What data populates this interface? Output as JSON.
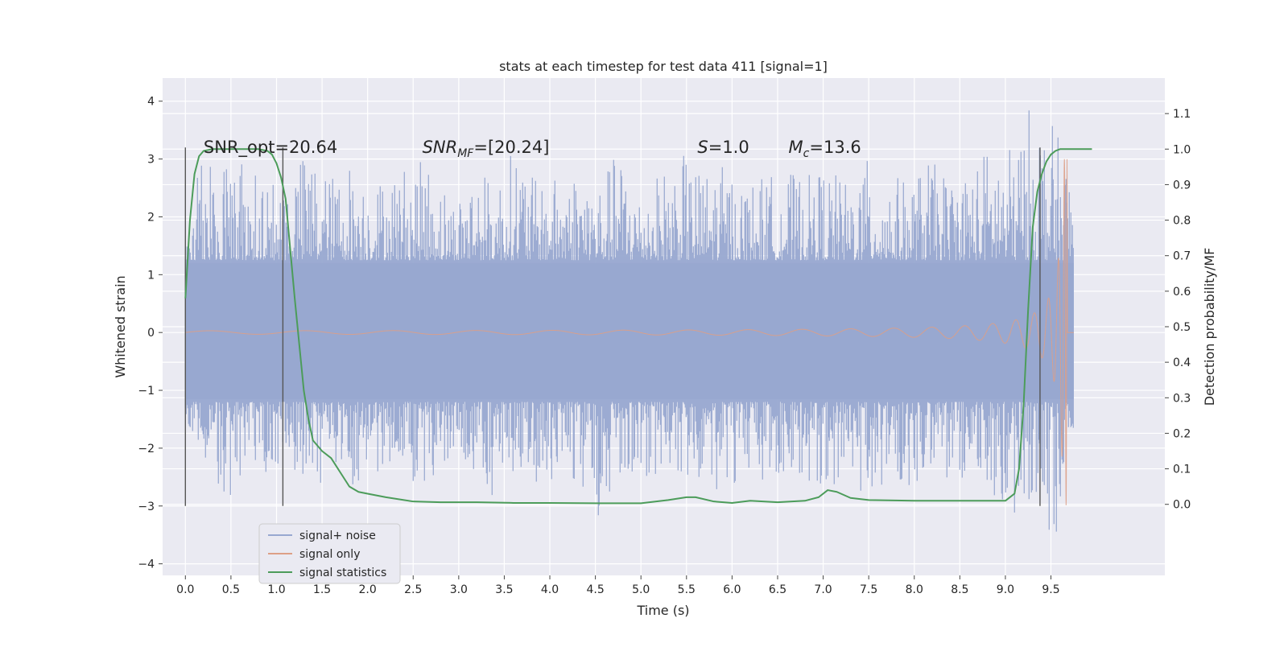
{
  "chart_data": {
    "type": "line",
    "title": "stats at each timestep for test data 411 [signal=1]",
    "xlabel": "Time (s)",
    "ylabel": "Whitened strain",
    "ylabel_right": "Detection probability/MF",
    "xlim": [
      -0.25,
      10.75
    ],
    "ylim": [
      -4.2,
      4.4
    ],
    "ylim_right": [
      -0.2,
      1.2
    ],
    "x_ticks": [
      0.0,
      0.5,
      1.0,
      1.5,
      2.0,
      2.5,
      3.0,
      3.5,
      4.0,
      4.5,
      5.0,
      5.5,
      6.0,
      6.5,
      7.0,
      7.5,
      8.0,
      8.5,
      9.0,
      9.5
    ],
    "x_tick_labels": [
      "0.0",
      "0.5",
      "1.0",
      "1.5",
      "2.0",
      "2.5",
      "3.0",
      "3.5",
      "4.0",
      "4.5",
      "5.0",
      "5.5",
      "6.0",
      "6.5",
      "7.0",
      "7.5",
      "8.0",
      "8.5",
      "9.0",
      "9.5"
    ],
    "y_ticks": [
      4,
      3,
      2,
      1,
      0,
      -1,
      -2,
      -3,
      -4
    ],
    "y_tick_labels": [
      "4",
      "3",
      "2",
      "1",
      "0",
      "−1",
      "−2",
      "−3",
      "−4"
    ],
    "y_right_ticks": [
      1.1,
      1.0,
      0.9,
      0.8,
      0.7,
      0.6,
      0.5,
      0.4,
      0.3,
      0.2,
      0.1,
      0.0
    ],
    "y_right_tick_labels": [
      "1.1",
      "1.0",
      "0.9",
      "0.8",
      "0.7",
      "0.6",
      "0.5",
      "0.4",
      "0.3",
      "0.2",
      "0.1",
      "0.0"
    ],
    "grid": true,
    "legend_position": "lower-left",
    "series": [
      {
        "name": "signal+ noise",
        "axis": "left",
        "color": "#98a8d0",
        "t_range": [
          0.0,
          9.75
        ],
        "envelope_max": [
          2.0,
          3.3,
          2.9,
          3.2,
          2.6,
          2.8,
          3.2,
          2.7,
          3.0,
          2.6,
          2.8,
          3.0,
          2.9,
          2.3,
          2.9,
          2.6,
          3.3,
          2.6,
          2.7,
          2.9,
          2.6,
          3.2,
          2.4,
          2.8,
          3.1,
          2.8,
          2.9,
          2.6,
          2.7,
          2.8,
          2.7,
          2.9,
          2.6,
          3.0,
          2.8,
          2.6,
          3.0,
          2.7,
          2.9,
          3.3,
          3.2,
          4.05,
          3.6,
          2.8
        ],
        "envelope_min": [
          -1.5,
          -2.2,
          -2.9,
          -2.4,
          -2.5,
          -2.3,
          -2.8,
          -2.5,
          -2.9,
          -2.6,
          -2.3,
          -2.7,
          -2.6,
          -2.2,
          -2.8,
          -3.0,
          -2.4,
          -2.6,
          -2.8,
          -2.7,
          -3.2,
          -2.5,
          -2.6,
          -2.4,
          -2.9,
          -2.6,
          -2.8,
          -2.5,
          -2.6,
          -2.4,
          -2.7,
          -2.6,
          -2.7,
          -2.8,
          -2.6,
          -2.7,
          -2.5,
          -2.8,
          -2.6,
          -2.9,
          -3.2,
          -3.4,
          -3.85,
          -2.0
        ]
      },
      {
        "name": "signal only",
        "axis": "left",
        "color": "#dd9f86",
        "description_values": {
          "t_start": 0.0,
          "t_merge": 9.68,
          "peak_amplitude": 3.0,
          "quiet_amplitude": 0.02
        }
      },
      {
        "name": "signal statistics",
        "axis": "right",
        "color": "#4c9c5a",
        "x": [
          0.0,
          0.05,
          0.1,
          0.15,
          0.2,
          0.3,
          0.4,
          0.6,
          0.8,
          0.9,
          0.95,
          1.0,
          1.05,
          1.1,
          1.15,
          1.2,
          1.25,
          1.3,
          1.35,
          1.4,
          1.5,
          1.6,
          1.7,
          1.8,
          1.9,
          2.0,
          2.2,
          2.5,
          2.8,
          3.2,
          3.6,
          4.0,
          4.5,
          5.0,
          5.3,
          5.5,
          5.6,
          5.8,
          6.0,
          6.2,
          6.5,
          6.8,
          6.95,
          7.05,
          7.15,
          7.3,
          7.5,
          8.0,
          8.5,
          9.0,
          9.1,
          9.15,
          9.2,
          9.25,
          9.3,
          9.35,
          9.4,
          9.45,
          9.5,
          9.55,
          9.6,
          9.7,
          9.8,
          9.95
        ],
        "y": [
          0.58,
          0.8,
          0.93,
          0.98,
          0.995,
          1.0,
          1.0,
          1.0,
          1.0,
          0.995,
          0.985,
          0.96,
          0.92,
          0.86,
          0.72,
          0.58,
          0.45,
          0.32,
          0.24,
          0.18,
          0.15,
          0.13,
          0.09,
          0.05,
          0.035,
          0.03,
          0.02,
          0.008,
          0.006,
          0.006,
          0.004,
          0.004,
          0.003,
          0.003,
          0.012,
          0.02,
          0.02,
          0.008,
          0.004,
          0.01,
          0.006,
          0.01,
          0.02,
          0.04,
          0.035,
          0.018,
          0.012,
          0.01,
          0.01,
          0.01,
          0.03,
          0.1,
          0.28,
          0.55,
          0.78,
          0.88,
          0.93,
          0.965,
          0.985,
          0.995,
          1.0,
          1.0,
          1.0,
          1.0
        ]
      }
    ],
    "annotations": [
      {
        "label": "SNR_opt=20.64",
        "x": 0.2,
        "y": 3.2
      },
      {
        "label": "SNR",
        "sub": "MF",
        "rest": "=[20.24]",
        "x": 2.6,
        "y": 3.2
      },
      {
        "label": "S",
        "rest": "=1.0",
        "x": 5.62,
        "y": 3.2
      },
      {
        "label": "M",
        "sub": "c",
        "rest": "=13.6",
        "x": 6.62,
        "y": 3.2
      }
    ],
    "vertical_markers": [
      {
        "x": 0.0,
        "from": -3.0,
        "to": 3.2
      },
      {
        "x": 1.07,
        "from": -3.0,
        "to": 3.2
      },
      {
        "x": 9.38,
        "from": -3.0,
        "to": 3.2
      }
    ]
  }
}
